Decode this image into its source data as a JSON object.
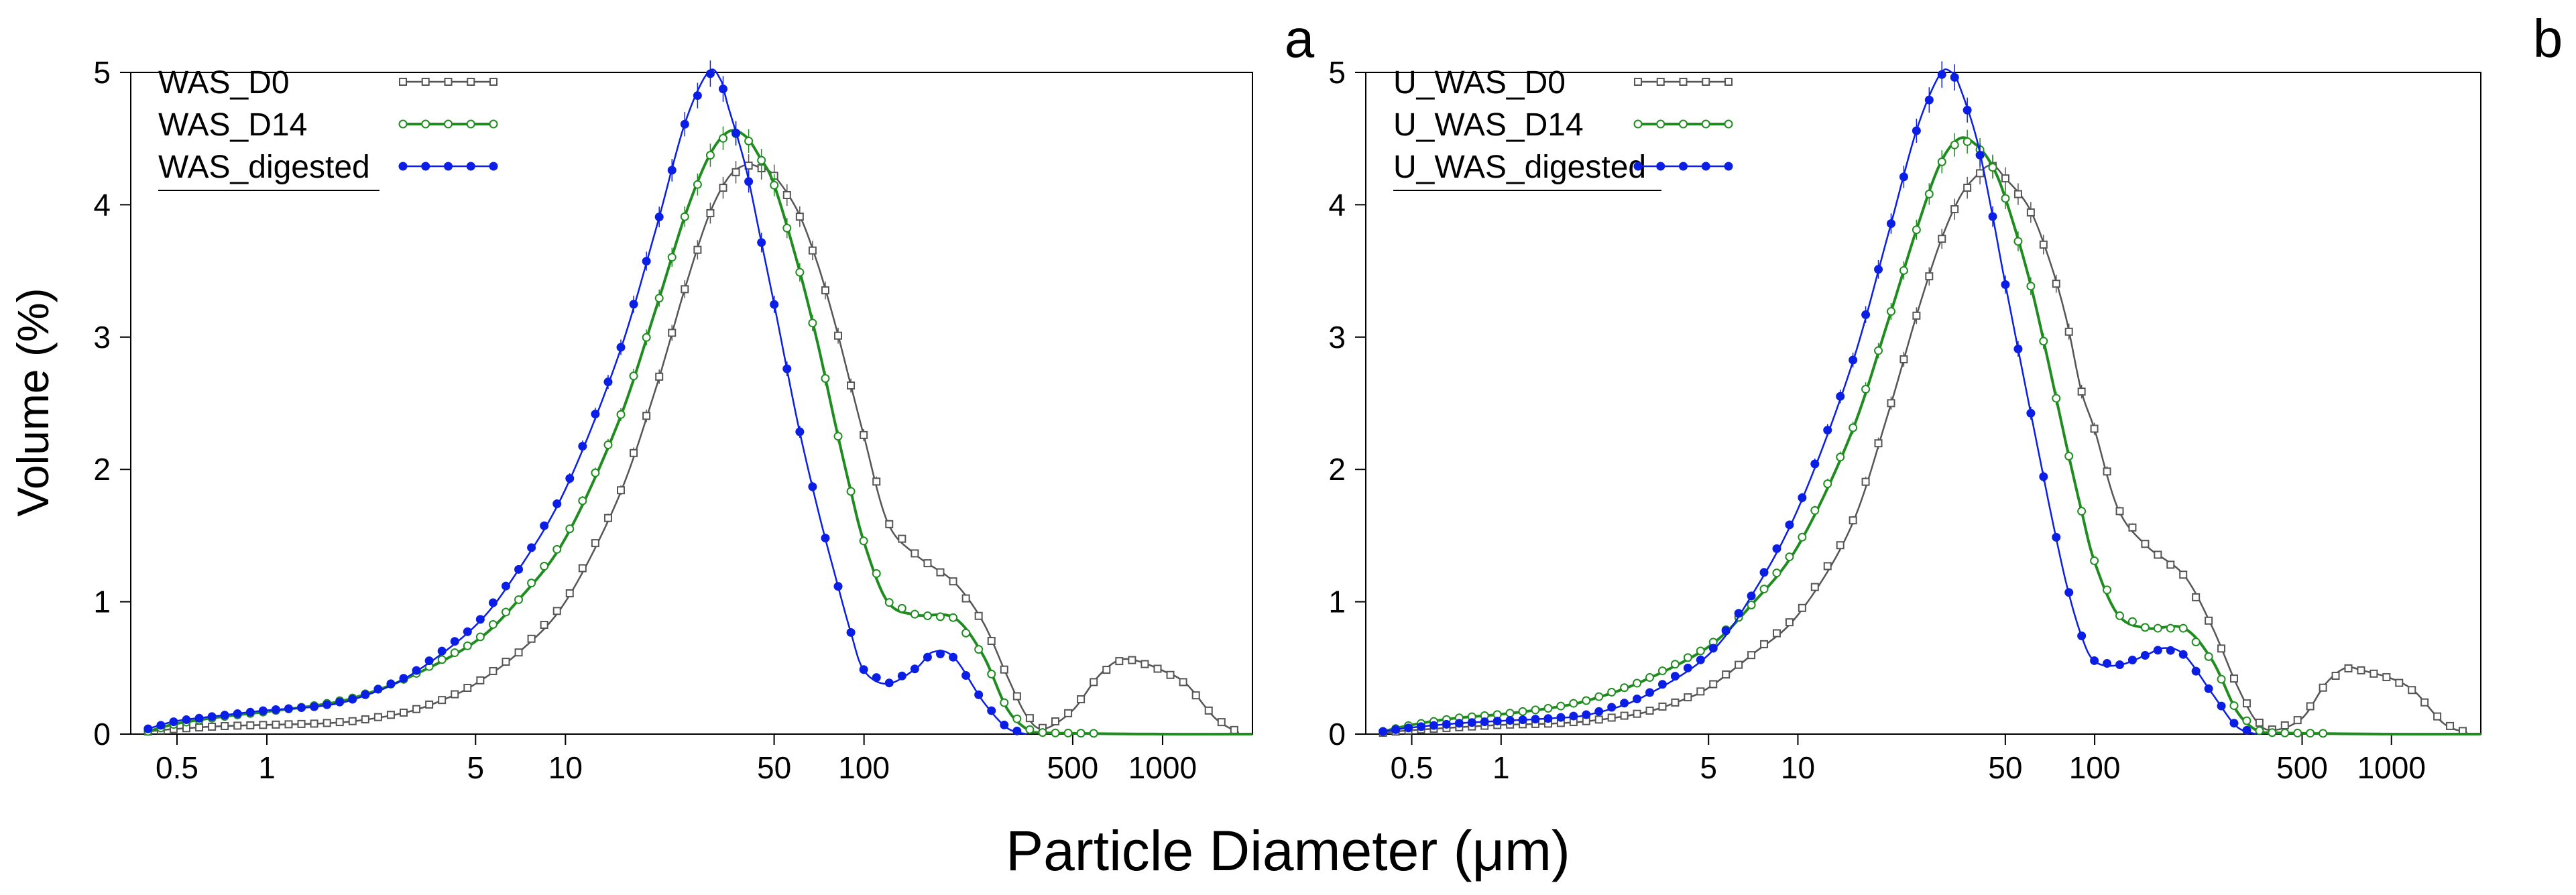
{
  "figure": {
    "xlabel": "Particle Diameter (μm)",
    "ylabel": "Volume (%)"
  },
  "colors": {
    "D0": "#555555",
    "D14": "#1e8c1e",
    "digested": "#0a1ee6",
    "axis": "#000000"
  },
  "chart_data": [
    {
      "type": "line",
      "panel_label": "a",
      "xscale": "log",
      "xlim": [
        0.35,
        2000
      ],
      "ylim": [
        0,
        5
      ],
      "xticks": [
        0.5,
        1,
        5,
        10,
        50,
        100,
        500,
        1000
      ],
      "xtick_labels": [
        "0.5",
        "1",
        "5",
        "10",
        "50",
        "100",
        "500",
        "1000"
      ],
      "yticks": [
        0,
        1,
        2,
        3,
        4,
        5
      ],
      "ytick_labels": [
        "0",
        "1",
        "2",
        "3",
        "4",
        "5"
      ],
      "legend_position": "top-left",
      "series": [
        {
          "name": "WAS_D0",
          "color_key": "D0",
          "marker": "open-square",
          "has_error_bars": true,
          "points": [
            [
              0.4,
              0.02
            ],
            [
              0.5,
              0.04
            ],
            [
              0.7,
              0.06
            ],
            [
              1,
              0.07
            ],
            [
              1.5,
              0.08
            ],
            [
              2,
              0.1
            ],
            [
              3,
              0.17
            ],
            [
              4,
              0.27
            ],
            [
              5,
              0.38
            ],
            [
              7,
              0.62
            ],
            [
              10,
              1.0
            ],
            [
              15,
              1.78
            ],
            [
              20,
              2.6
            ],
            [
              25,
              3.35
            ],
            [
              30,
              3.9
            ],
            [
              35,
              4.2
            ],
            [
              40,
              4.3
            ],
            [
              45,
              4.28
            ],
            [
              50,
              4.22
            ],
            [
              60,
              3.95
            ],
            [
              70,
              3.55
            ],
            [
              80,
              3.1
            ],
            [
              90,
              2.65
            ],
            [
              100,
              2.25
            ],
            [
              120,
              1.6
            ],
            [
              150,
              1.35
            ],
            [
              200,
              1.15
            ],
            [
              250,
              0.85
            ],
            [
              300,
              0.45
            ],
            [
              350,
              0.14
            ],
            [
              400,
              0.04
            ],
            [
              500,
              0.18
            ],
            [
              600,
              0.42
            ],
            [
              700,
              0.55
            ],
            [
              800,
              0.56
            ],
            [
              1000,
              0.48
            ],
            [
              1200,
              0.38
            ],
            [
              1500,
              0.12
            ],
            [
              1800,
              0.01
            ]
          ]
        },
        {
          "name": "WAS_D14",
          "color_key": "D14",
          "marker": "open-circle",
          "has_error_bars": true,
          "points": [
            [
              0.4,
              0.02
            ],
            [
              0.5,
              0.08
            ],
            [
              0.7,
              0.13
            ],
            [
              1,
              0.17
            ],
            [
              1.5,
              0.22
            ],
            [
              2,
              0.28
            ],
            [
              3,
              0.43
            ],
            [
              5,
              0.7
            ],
            [
              7,
              1.02
            ],
            [
              10,
              1.48
            ],
            [
              15,
              2.35
            ],
            [
              20,
              3.2
            ],
            [
              25,
              3.9
            ],
            [
              30,
              4.35
            ],
            [
              35,
              4.55
            ],
            [
              40,
              4.52
            ],
            [
              45,
              4.35
            ],
            [
              50,
              4.15
            ],
            [
              60,
              3.55
            ],
            [
              70,
              2.95
            ],
            [
              80,
              2.35
            ],
            [
              90,
              1.85
            ],
            [
              100,
              1.45
            ],
            [
              120,
              1.0
            ],
            [
              150,
              0.9
            ],
            [
              200,
              0.88
            ],
            [
              250,
              0.6
            ],
            [
              300,
              0.2
            ],
            [
              350,
              0.04
            ],
            [
              400,
              0.01
            ],
            [
              1000,
              0.0
            ],
            [
              2000,
              0.0
            ]
          ]
        },
        {
          "name": "WAS_digested",
          "color_key": "digested",
          "marker": "filled-circle",
          "has_error_bars": true,
          "points": [
            [
              0.4,
              0.04
            ],
            [
              0.5,
              0.1
            ],
            [
              0.7,
              0.14
            ],
            [
              1,
              0.18
            ],
            [
              1.5,
              0.21
            ],
            [
              2,
              0.27
            ],
            [
              3,
              0.44
            ],
            [
              5,
              0.82
            ],
            [
              7,
              1.25
            ],
            [
              10,
              1.85
            ],
            [
              15,
              2.85
            ],
            [
              20,
              3.8
            ],
            [
              25,
              4.6
            ],
            [
              30,
              5.0
            ],
            [
              33,
              4.95
            ],
            [
              35,
              4.75
            ],
            [
              40,
              4.3
            ],
            [
              45,
              3.75
            ],
            [
              50,
              3.25
            ],
            [
              60,
              2.35
            ],
            [
              70,
              1.7
            ],
            [
              80,
              1.2
            ],
            [
              90,
              0.78
            ],
            [
              100,
              0.48
            ],
            [
              120,
              0.38
            ],
            [
              150,
              0.5
            ],
            [
              170,
              0.62
            ],
            [
              200,
              0.58
            ],
            [
              250,
              0.25
            ],
            [
              300,
              0.05
            ],
            [
              350,
              0.0
            ]
          ]
        }
      ]
    },
    {
      "type": "line",
      "panel_label": "b",
      "xscale": "log",
      "xlim": [
        0.35,
        2000
      ],
      "ylim": [
        0,
        5
      ],
      "xticks": [
        0.5,
        1,
        5,
        10,
        50,
        100,
        500,
        1000
      ],
      "xtick_labels": [
        "0.5",
        "1",
        "5",
        "10",
        "50",
        "100",
        "500",
        "1000"
      ],
      "yticks": [
        0,
        1,
        2,
        3,
        4,
        5
      ],
      "ytick_labels": [
        "0",
        "1",
        "2",
        "3",
        "4",
        "5"
      ],
      "legend_position": "top-left",
      "series": [
        {
          "name": "U_WAS_D0",
          "color_key": "D0",
          "marker": "open-square",
          "has_error_bars": true,
          "points": [
            [
              0.4,
              0.01
            ],
            [
              0.5,
              0.03
            ],
            [
              0.7,
              0.05
            ],
            [
              1,
              0.07
            ],
            [
              1.5,
              0.08
            ],
            [
              2,
              0.1
            ],
            [
              3,
              0.16
            ],
            [
              4,
              0.25
            ],
            [
              5,
              0.35
            ],
            [
              7,
              0.6
            ],
            [
              10,
              0.9
            ],
            [
              15,
              1.55
            ],
            [
              20,
              2.4
            ],
            [
              25,
              3.15
            ],
            [
              30,
              3.7
            ],
            [
              35,
              4.05
            ],
            [
              40,
              4.22
            ],
            [
              45,
              4.3
            ],
            [
              50,
              4.2
            ],
            [
              60,
              3.98
            ],
            [
              70,
              3.6
            ],
            [
              80,
              3.15
            ],
            [
              90,
              2.6
            ],
            [
              100,
              2.3
            ],
            [
              120,
              1.7
            ],
            [
              150,
              1.42
            ],
            [
              200,
              1.2
            ],
            [
              250,
              0.8
            ],
            [
              300,
              0.38
            ],
            [
              350,
              0.1
            ],
            [
              400,
              0.03
            ],
            [
              500,
              0.12
            ],
            [
              600,
              0.38
            ],
            [
              700,
              0.5
            ],
            [
              800,
              0.48
            ],
            [
              1000,
              0.42
            ],
            [
              1200,
              0.32
            ],
            [
              1500,
              0.08
            ],
            [
              1800,
              0.01
            ]
          ]
        },
        {
          "name": "U_WAS_D14",
          "color_key": "D14",
          "marker": "open-circle",
          "has_error_bars": true,
          "points": [
            [
              0.4,
              0.02
            ],
            [
              0.5,
              0.07
            ],
            [
              0.7,
              0.12
            ],
            [
              1,
              0.15
            ],
            [
              1.5,
              0.2
            ],
            [
              2,
              0.26
            ],
            [
              3,
              0.4
            ],
            [
              5,
              0.66
            ],
            [
              7,
              0.98
            ],
            [
              10,
              1.42
            ],
            [
              15,
              2.25
            ],
            [
              20,
              3.1
            ],
            [
              25,
              3.8
            ],
            [
              30,
              4.3
            ],
            [
              35,
              4.5
            ],
            [
              40,
              4.45
            ],
            [
              45,
              4.3
            ],
            [
              50,
              4.05
            ],
            [
              60,
              3.45
            ],
            [
              70,
              2.8
            ],
            [
              80,
              2.2
            ],
            [
              90,
              1.7
            ],
            [
              100,
              1.3
            ],
            [
              120,
              0.9
            ],
            [
              150,
              0.8
            ],
            [
              200,
              0.8
            ],
            [
              250,
              0.55
            ],
            [
              300,
              0.18
            ],
            [
              350,
              0.03
            ],
            [
              400,
              0.01
            ],
            [
              1000,
              0.0
            ],
            [
              2000,
              0.0
            ]
          ]
        },
        {
          "name": "U_WAS_digested",
          "color_key": "digested",
          "marker": "filled-circle",
          "has_error_bars": true,
          "points": [
            [
              0.4,
              0.02
            ],
            [
              0.5,
              0.05
            ],
            [
              0.7,
              0.08
            ],
            [
              1,
              0.1
            ],
            [
              1.5,
              0.12
            ],
            [
              2,
              0.15
            ],
            [
              3,
              0.28
            ],
            [
              5,
              0.6
            ],
            [
              7,
              1.05
            ],
            [
              10,
              1.7
            ],
            [
              15,
              2.75
            ],
            [
              20,
              3.75
            ],
            [
              25,
              4.55
            ],
            [
              30,
              4.98
            ],
            [
              33,
              5.0
            ],
            [
              35,
              4.9
            ],
            [
              40,
              4.5
            ],
            [
              45,
              3.95
            ],
            [
              50,
              3.4
            ],
            [
              60,
              2.5
            ],
            [
              70,
              1.75
            ],
            [
              80,
              1.15
            ],
            [
              90,
              0.75
            ],
            [
              100,
              0.55
            ],
            [
              120,
              0.52
            ],
            [
              150,
              0.6
            ],
            [
              170,
              0.65
            ],
            [
              200,
              0.6
            ],
            [
              250,
              0.3
            ],
            [
              300,
              0.06
            ],
            [
              350,
              0.0
            ]
          ]
        }
      ]
    }
  ]
}
